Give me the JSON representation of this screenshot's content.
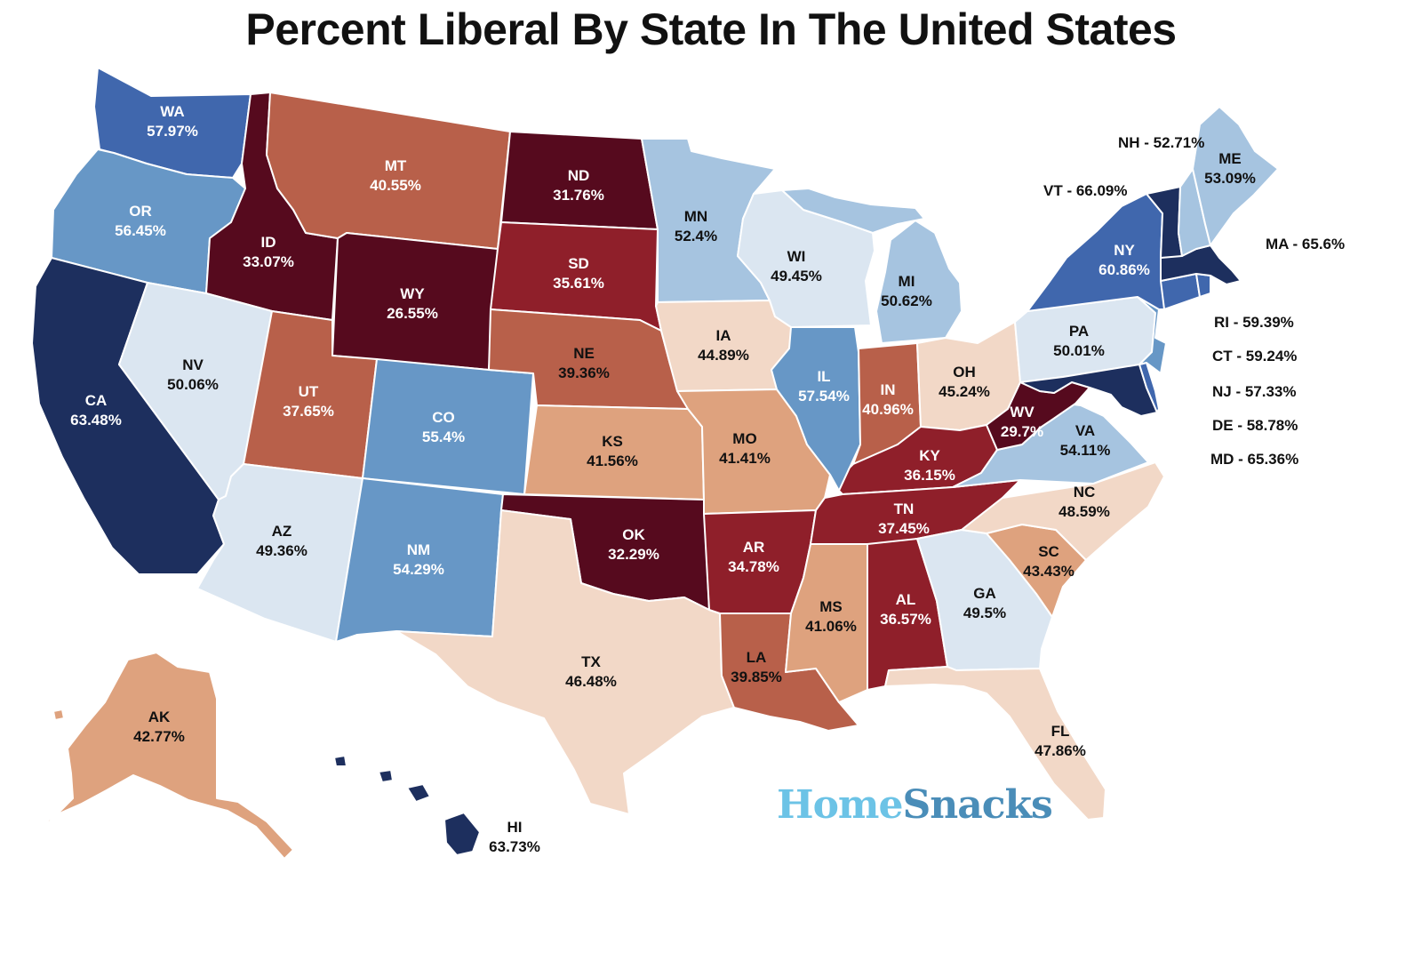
{
  "title": "Percent Liberal By State In The United States",
  "brand": {
    "part1": "Home",
    "part2": "Snacks"
  },
  "colors": {
    "darkest_red": "#560a1e",
    "red": "#8f1f2a",
    "brick": "#b8604a",
    "salmon": "#dea27e",
    "peach": "#f2d8c7",
    "pale_blue": "#dbe6f1",
    "light_blue": "#a6c4e0",
    "mid_blue": "#6797c6",
    "blue": "#4067ad",
    "navy": "#1d2f5e"
  },
  "states": {
    "WA": {
      "label": "WA",
      "value": "57.97%"
    },
    "OR": {
      "label": "OR",
      "value": "56.45%"
    },
    "CA": {
      "label": "CA",
      "value": "63.48%"
    },
    "ID": {
      "label": "ID",
      "value": "33.07%"
    },
    "NV": {
      "label": "NV",
      "value": "50.06%"
    },
    "MT": {
      "label": "MT",
      "value": "40.55%"
    },
    "WY": {
      "label": "WY",
      "value": "26.55%"
    },
    "UT": {
      "label": "UT",
      "value": "37.65%"
    },
    "AZ": {
      "label": "AZ",
      "value": "49.36%"
    },
    "CO": {
      "label": "CO",
      "value": "55.4%"
    },
    "NM": {
      "label": "NM",
      "value": "54.29%"
    },
    "ND": {
      "label": "ND",
      "value": "31.76%"
    },
    "SD": {
      "label": "SD",
      "value": "35.61%"
    },
    "NE": {
      "label": "NE",
      "value": "39.36%"
    },
    "KS": {
      "label": "KS",
      "value": "41.56%"
    },
    "OK": {
      "label": "OK",
      "value": "32.29%"
    },
    "TX": {
      "label": "TX",
      "value": "46.48%"
    },
    "MN": {
      "label": "MN",
      "value": "52.4%"
    },
    "IA": {
      "label": "IA",
      "value": "44.89%"
    },
    "MO": {
      "label": "MO",
      "value": "41.41%"
    },
    "AR": {
      "label": "AR",
      "value": "34.78%"
    },
    "LA": {
      "label": "LA",
      "value": "39.85%"
    },
    "WI": {
      "label": "WI",
      "value": "49.45%"
    },
    "IL": {
      "label": "IL",
      "value": "57.54%"
    },
    "MI": {
      "label": "MI",
      "value": "50.62%"
    },
    "IN": {
      "label": "IN",
      "value": "40.96%"
    },
    "OH": {
      "label": "OH",
      "value": "45.24%"
    },
    "KY": {
      "label": "KY",
      "value": "36.15%"
    },
    "TN": {
      "label": "TN",
      "value": "37.45%"
    },
    "MS": {
      "label": "MS",
      "value": "41.06%"
    },
    "AL": {
      "label": "AL",
      "value": "36.57%"
    },
    "GA": {
      "label": "GA",
      "value": "49.5%"
    },
    "FL": {
      "label": "FL",
      "value": "47.86%"
    },
    "SC": {
      "label": "SC",
      "value": "43.43%"
    },
    "NC": {
      "label": "NC",
      "value": "48.59%"
    },
    "VA": {
      "label": "VA",
      "value": "54.11%"
    },
    "WV": {
      "label": "WV",
      "value": "29.7%"
    },
    "PA": {
      "label": "PA",
      "value": "50.01%"
    },
    "NY": {
      "label": "NY",
      "value": "60.86%"
    },
    "ME": {
      "label": "ME",
      "value": "53.09%"
    },
    "AK": {
      "label": "AK",
      "value": "42.77%"
    },
    "HI": {
      "label": "HI",
      "value": "63.73%"
    }
  },
  "external_labels": {
    "NH": "NH - 52.71%",
    "VT": "VT - 66.09%",
    "MA": "MA - 65.6%",
    "RI": "RI - 59.39%",
    "CT": "CT - 59.24%",
    "NJ": "NJ - 57.33%",
    "DE": "DE - 58.78%",
    "MD": "MD - 65.36%"
  }
}
